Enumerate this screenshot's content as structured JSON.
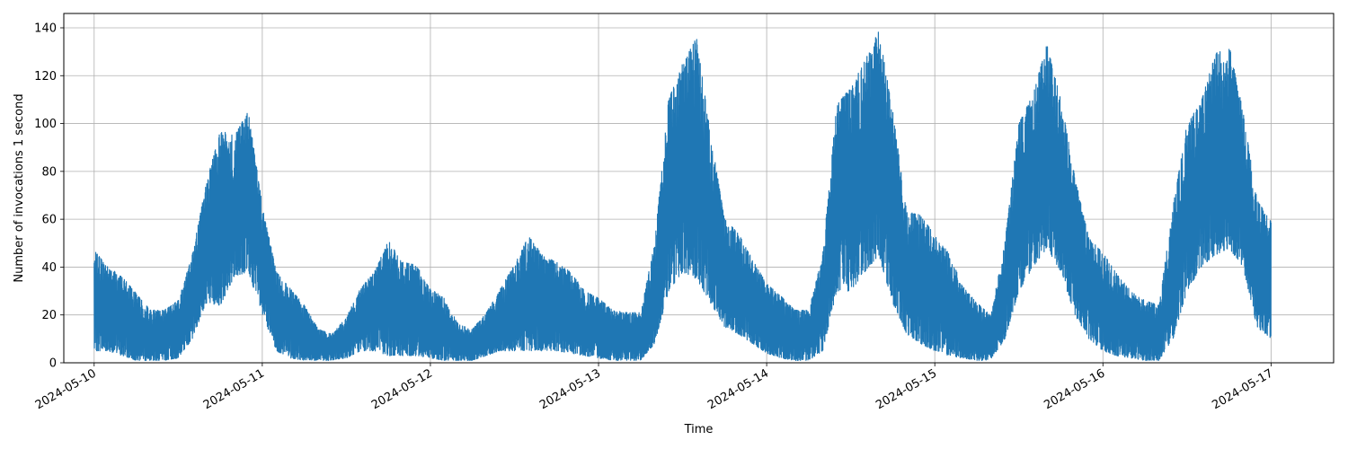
{
  "chart_data": {
    "type": "line",
    "title": "",
    "xlabel": "Time",
    "ylabel": "Number of invocations 1 second",
    "xlim": [
      "2024-05-09T19:40:00",
      "2024-05-17T08:56:00"
    ],
    "ylim": [
      0,
      146
    ],
    "grid": true,
    "legend": "none",
    "line_color": "#1f77b4",
    "x_ticks": [
      "2024-05-10",
      "2024-05-11",
      "2024-05-12",
      "2024-05-13",
      "2024-05-14",
      "2024-05-15",
      "2024-05-16",
      "2024-05-17"
    ],
    "y_ticks": [
      0,
      20,
      40,
      60,
      80,
      100,
      120,
      140
    ],
    "series": [
      {
        "x": [
          "2024-05-10T00:00",
          "2024-05-10T02:00",
          "2024-05-10T04:00",
          "2024-05-10T06:00",
          "2024-05-10T08:00",
          "2024-05-10T10:00",
          "2024-05-10T12:00",
          "2024-05-10T14:00",
          "2024-05-10T16:00",
          "2024-05-10T18:00",
          "2024-05-10T20:00",
          "2024-05-10T22:00",
          "2024-05-11T00:00",
          "2024-05-11T02:00",
          "2024-05-11T04:00",
          "2024-05-11T06:00",
          "2024-05-11T08:00",
          "2024-05-11T10:00",
          "2024-05-11T12:00",
          "2024-05-11T14:00",
          "2024-05-11T16:00",
          "2024-05-11T18:00",
          "2024-05-11T20:00",
          "2024-05-11T22:00",
          "2024-05-12T00:00",
          "2024-05-12T02:00",
          "2024-05-12T04:00",
          "2024-05-12T06:00",
          "2024-05-12T08:00",
          "2024-05-12T10:00",
          "2024-05-12T12:00",
          "2024-05-12T14:00",
          "2024-05-12T16:00",
          "2024-05-12T18:00",
          "2024-05-12T20:00",
          "2024-05-12T22:00",
          "2024-05-13T00:00",
          "2024-05-13T02:00",
          "2024-05-13T04:00",
          "2024-05-13T06:00",
          "2024-05-13T08:00",
          "2024-05-13T10:00",
          "2024-05-13T12:00",
          "2024-05-13T14:00",
          "2024-05-13T16:00",
          "2024-05-13T18:00",
          "2024-05-13T20:00",
          "2024-05-13T22:00",
          "2024-05-14T00:00",
          "2024-05-14T02:00",
          "2024-05-14T04:00",
          "2024-05-14T06:00",
          "2024-05-14T08:00",
          "2024-05-14T10:00",
          "2024-05-14T12:00",
          "2024-05-14T14:00",
          "2024-05-14T16:00",
          "2024-05-14T18:00",
          "2024-05-14T20:00",
          "2024-05-14T22:00",
          "2024-05-15T00:00",
          "2024-05-15T02:00",
          "2024-05-15T04:00",
          "2024-05-15T06:00",
          "2024-05-15T08:00",
          "2024-05-15T10:00",
          "2024-05-15T12:00",
          "2024-05-15T14:00",
          "2024-05-15T16:00",
          "2024-05-15T18:00",
          "2024-05-15T20:00",
          "2024-05-15T22:00",
          "2024-05-16T00:00",
          "2024-05-16T02:00",
          "2024-05-16T04:00",
          "2024-05-16T06:00",
          "2024-05-16T08:00",
          "2024-05-16T10:00",
          "2024-05-16T12:00",
          "2024-05-16T14:00",
          "2024-05-16T16:00",
          "2024-05-16T18:00",
          "2024-05-16T20:00",
          "2024-05-16T22:00",
          "2024-05-17T00:00"
        ],
        "max": [
          47,
          40,
          36,
          29,
          22,
          22,
          26,
          45,
          75,
          97,
          95,
          105,
          66,
          38,
          31,
          24,
          14,
          12,
          19,
          31,
          38,
          51,
          42,
          41,
          31,
          27,
          16,
          14,
          21,
          31,
          41,
          53,
          45,
          42,
          38,
          30,
          27,
          22,
          21,
          21,
          50,
          110,
          125,
          136,
          95,
          60,
          54,
          43,
          33,
          28,
          22,
          22,
          45,
          108,
          115,
          126,
          139,
          105,
          63,
          62,
          53,
          46,
          32,
          25,
          20,
          50,
          100,
          112,
          133,
          110,
          78,
          52,
          46,
          37,
          30,
          26,
          24,
          65,
          100,
          109,
          129,
          133,
          105,
          68,
          59
        ],
        "min": [
          5,
          5,
          3,
          1,
          1,
          1,
          2,
          10,
          25,
          24,
          36,
          38,
          20,
          5,
          2,
          1,
          1,
          1,
          2,
          5,
          5,
          3,
          3,
          3,
          2,
          1,
          1,
          1,
          3,
          5,
          5,
          5,
          5,
          5,
          4,
          3,
          2,
          1,
          1,
          1,
          8,
          30,
          38,
          35,
          25,
          15,
          12,
          8,
          4,
          2,
          1,
          1,
          5,
          30,
          30,
          38,
          45,
          25,
          12,
          8,
          5,
          3,
          2,
          1,
          1,
          10,
          30,
          40,
          48,
          38,
          20,
          10,
          5,
          3,
          2,
          1,
          1,
          10,
          30,
          40,
          45,
          48,
          40,
          15,
          10
        ]
      }
    ]
  }
}
